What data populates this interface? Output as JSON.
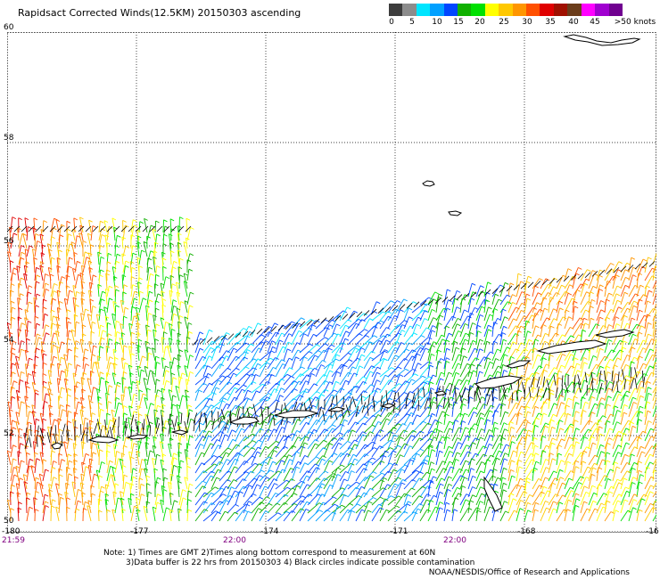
{
  "title": "Rapidsact Corrected Winds(12.5KM) 20150303 ascending",
  "colorbar": {
    "colors": [
      "#3c3c3c",
      "#8c8c8c",
      "#00e5ff",
      "#00a0ff",
      "#0046ff",
      "#10b000",
      "#00e000",
      "#ffff00",
      "#ffc800",
      "#ff9600",
      "#ff5000",
      "#e00000",
      "#a01000",
      "#6a3c1a",
      "#ff00ff",
      "#a000d0",
      "#700090"
    ],
    "labels": [
      "0",
      "5",
      "10",
      "15",
      "20",
      "25",
      "30",
      "35",
      "40",
      "45",
      ">50 knots"
    ]
  },
  "map": {
    "lat_labels": [
      "60",
      "58",
      "56",
      "54",
      "52",
      "50"
    ],
    "lon_labels": [
      "-180",
      "-177",
      "-174",
      "-171",
      "-168",
      "-16"
    ],
    "time_labels": [
      "21:59",
      "22:00",
      "22:00"
    ]
  },
  "notes": {
    "line1": "Note: 1) Times are GMT 2)Times along bottom correspond to measurement at 60N",
    "line2": "3)Data buffer is 22 hrs from 20150303 4) Black circles indicate possible contamination",
    "credit": "NOAA/NESDIS/Office of Research and Applications"
  }
}
